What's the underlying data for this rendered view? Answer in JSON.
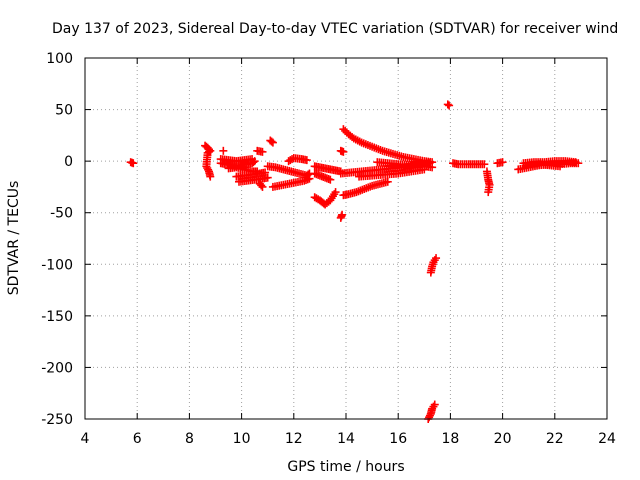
{
  "chart_data": {
    "type": "scatter",
    "title": "Day 137 of 2023, Sidereal Day-to-day VTEC variation (SDTVAR) for receiver wind",
    "xlabel": "GPS time / hours",
    "ylabel": "SDTVAR / TECUs",
    "xlim": [
      4,
      24
    ],
    "ylim": [
      -250,
      100
    ],
    "xticks": [
      "4",
      "6",
      "8",
      "10",
      "12",
      "14",
      "16",
      "18",
      "20",
      "22",
      "24"
    ],
    "yticks": [
      "100",
      "50",
      "0",
      "-50",
      "-100",
      "-150",
      "-200",
      "-250"
    ],
    "grid": true,
    "marker": "plus",
    "color": "#ff0000",
    "series": [
      {
        "name": "SDTVAR",
        "segments": [
          [
            [
              5.75,
              -1
            ],
            [
              5.85,
              -2
            ]
          ],
          [
            [
              8.6,
              15
            ],
            [
              8.7,
              13
            ],
            [
              8.8,
              10
            ],
            [
              8.7,
              8
            ],
            [
              8.65,
              -5
            ],
            [
              8.75,
              -10
            ],
            [
              8.8,
              -15
            ]
          ],
          [
            [
              9.3,
              10
            ]
          ],
          [
            [
              9.2,
              -2
            ],
            [
              9.4,
              -3
            ],
            [
              9.6,
              -4
            ],
            [
              9.8,
              -5
            ],
            [
              10.0,
              -4
            ],
            [
              10.2,
              -3
            ],
            [
              10.4,
              -2
            ],
            [
              10.5,
              0
            ]
          ],
          [
            [
              9.2,
              2
            ],
            [
              9.5,
              1
            ],
            [
              9.8,
              0
            ],
            [
              10.1,
              1
            ],
            [
              10.4,
              2
            ]
          ],
          [
            [
              9.5,
              -7
            ],
            [
              9.8,
              -6
            ],
            [
              10.1,
              -8
            ],
            [
              10.4,
              -10
            ],
            [
              10.6,
              -10
            ]
          ],
          [
            [
              9.8,
              -15
            ],
            [
              10.1,
              -14
            ],
            [
              10.4,
              -13
            ],
            [
              10.7,
              -12
            ],
            [
              10.9,
              -11
            ]
          ],
          [
            [
              9.9,
              -20
            ],
            [
              10.2,
              -19
            ],
            [
              10.5,
              -18
            ],
            [
              10.8,
              -17
            ],
            [
              11.0,
              -16
            ]
          ],
          [
            [
              10.6,
              10
            ],
            [
              10.8,
              9
            ]
          ],
          [
            [
              10.7,
              -22
            ],
            [
              10.8,
              -25
            ]
          ],
          [
            [
              11.1,
              20
            ],
            [
              11.2,
              18
            ]
          ],
          [
            [
              11.0,
              -5
            ],
            [
              11.3,
              -6
            ],
            [
              11.6,
              -8
            ],
            [
              11.9,
              -10
            ],
            [
              12.2,
              -12
            ],
            [
              12.5,
              -14
            ],
            [
              12.6,
              -12
            ]
          ],
          [
            [
              11.2,
              -25
            ],
            [
              11.6,
              -23
            ],
            [
              12.0,
              -21
            ],
            [
              12.4,
              -19
            ],
            [
              12.6,
              -17
            ]
          ],
          [
            [
              11.8,
              0
            ],
            [
              12.0,
              3
            ],
            [
              12.3,
              2
            ],
            [
              12.5,
              1
            ]
          ],
          [
            [
              12.8,
              -5
            ],
            [
              13.0,
              -6
            ],
            [
              13.2,
              -7
            ],
            [
              13.4,
              -8
            ],
            [
              13.6,
              -9
            ],
            [
              13.8,
              -10
            ]
          ],
          [
            [
              12.8,
              -12
            ],
            [
              13.0,
              -14
            ],
            [
              13.2,
              -16
            ],
            [
              13.4,
              -18
            ]
          ],
          [
            [
              12.8,
              -35
            ],
            [
              13.0,
              -38
            ],
            [
              13.1,
              -40
            ],
            [
              13.2,
              -42
            ],
            [
              13.4,
              -38
            ],
            [
              13.6,
              -30
            ]
          ],
          [
            [
              13.8,
              -55
            ],
            [
              13.85,
              -52
            ]
          ],
          [
            [
              13.8,
              10
            ],
            [
              13.9,
              9
            ]
          ],
          [
            [
              13.9,
              -33
            ],
            [
              14.1,
              -32
            ],
            [
              14.4,
              -30
            ],
            [
              14.7,
              -27
            ],
            [
              15.0,
              -24
            ],
            [
              15.3,
              -22
            ],
            [
              15.6,
              -20
            ]
          ],
          [
            [
              13.9,
              31
            ],
            [
              14.1,
              26
            ],
            [
              14.3,
              22
            ],
            [
              14.6,
              18
            ],
            [
              15.0,
              14
            ],
            [
              15.4,
              10
            ],
            [
              15.8,
              7
            ],
            [
              16.2,
              4
            ],
            [
              16.6,
              2
            ],
            [
              17.0,
              0
            ],
            [
              17.3,
              -1
            ]
          ],
          [
            [
              13.8,
              -12
            ],
            [
              14.2,
              -11
            ],
            [
              14.6,
              -10
            ],
            [
              15.0,
              -9
            ],
            [
              15.4,
              -8
            ],
            [
              15.8,
              -7
            ],
            [
              16.2,
              -6
            ],
            [
              16.6,
              -5
            ],
            [
              17.0,
              -5
            ],
            [
              17.3,
              -6
            ]
          ],
          [
            [
              14.5,
              -15
            ],
            [
              15.0,
              -14
            ],
            [
              15.5,
              -13
            ],
            [
              16.0,
              -12
            ],
            [
              16.5,
              -10
            ],
            [
              17.0,
              -8
            ]
          ],
          [
            [
              15.2,
              -1
            ],
            [
              15.6,
              -2
            ],
            [
              16.0,
              -3
            ],
            [
              16.4,
              -4
            ],
            [
              16.8,
              -3
            ],
            [
              17.2,
              -2
            ]
          ],
          [
            [
              17.25,
              -108
            ],
            [
              17.3,
              -102
            ],
            [
              17.35,
              -98
            ],
            [
              17.45,
              -94
            ]
          ],
          [
            [
              17.15,
              -250
            ],
            [
              17.25,
              -245
            ],
            [
              17.3,
              -240
            ],
            [
              17.4,
              -236
            ]
          ],
          [
            [
              17.9,
              55
            ],
            [
              17.95,
              54
            ]
          ],
          [
            [
              18.1,
              -2
            ],
            [
              18.3,
              -3
            ],
            [
              18.7,
              -3
            ],
            [
              19.0,
              -3
            ],
            [
              19.3,
              -3
            ]
          ],
          [
            [
              19.4,
              -10
            ],
            [
              19.45,
              -18
            ],
            [
              19.5,
              -23
            ],
            [
              19.45,
              -30
            ]
          ],
          [
            [
              19.8,
              -2
            ],
            [
              20.0,
              -1
            ]
          ],
          [
            [
              20.6,
              -8
            ],
            [
              21.0,
              -6
            ],
            [
              21.4,
              -4
            ],
            [
              21.8,
              -3
            ],
            [
              22.2,
              -3
            ],
            [
              22.6,
              -2
            ],
            [
              22.9,
              -2
            ]
          ],
          [
            [
              20.8,
              -2
            ],
            [
              21.2,
              -1
            ],
            [
              21.6,
              -1
            ],
            [
              22.0,
              0
            ],
            [
              22.4,
              0
            ],
            [
              22.8,
              -1
            ]
          ],
          [
            [
              21.0,
              -4
            ],
            [
              21.4,
              -3
            ],
            [
              21.8,
              -4
            ],
            [
              22.2,
              -5
            ]
          ]
        ]
      }
    ]
  }
}
